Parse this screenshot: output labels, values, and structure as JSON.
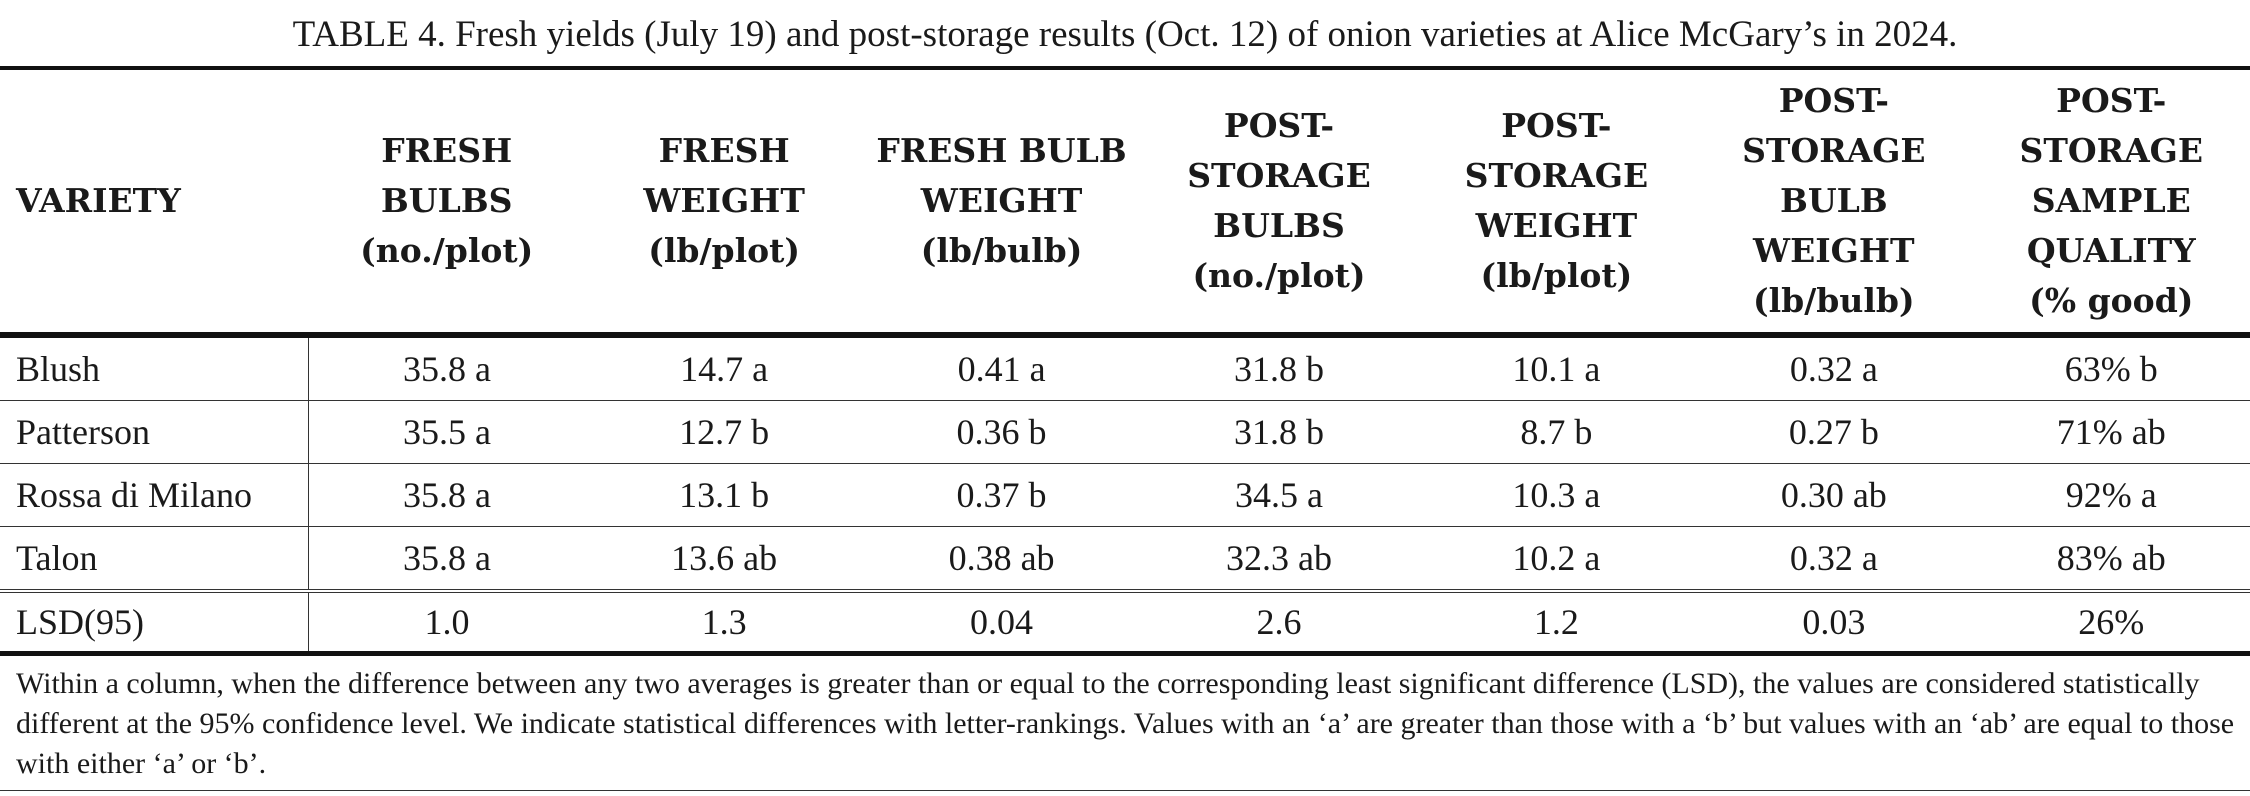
{
  "title": "TABLE 4. Fresh yields (July 19) and post-storage results (Oct. 12) of onion varieties at Alice McGary’s in 2024.",
  "table": {
    "header": [
      [
        "VARIETY"
      ],
      [
        "FRESH",
        "BULBS",
        "(no./plot)"
      ],
      [
        "FRESH",
        "WEIGHT",
        "(lb/plot)"
      ],
      [
        "FRESH BULB",
        "WEIGHT",
        "(lb/bulb)"
      ],
      [
        "POST-",
        "STORAGE",
        "BULBS",
        "(no./plot)"
      ],
      [
        "POST-",
        "STORAGE",
        "WEIGHT",
        "(lb/plot)"
      ],
      [
        "POST-",
        "STORAGE",
        "BULB",
        "WEIGHT",
        "(lb/bulb)"
      ],
      [
        "POST-",
        "STORAGE",
        "SAMPLE",
        "QUALITY",
        "(% good)"
      ]
    ],
    "rows": [
      [
        "Blush",
        "35.8 a",
        "14.7 a",
        "0.41 a",
        "31.8 b",
        "10.1 a",
        "0.32 a",
        "63% b"
      ],
      [
        "Patterson",
        "35.5 a",
        "12.7 b",
        "0.36 b",
        "31.8 b",
        "8.7 b",
        "0.27 b",
        "71% ab"
      ],
      [
        "Rossa di Milano",
        "35.8 a",
        "13.1 b",
        "0.37 b",
        "34.5 a",
        "10.3 a",
        "0.30 ab",
        "92% a"
      ],
      [
        "Talon",
        "35.8 a",
        "13.6 ab",
        "0.38 ab",
        "32.3 ab",
        "10.2 a",
        "0.32 a",
        "83% ab"
      ]
    ],
    "lsd_row": [
      "LSD(95)",
      "1.0",
      "1.3",
      "0.04",
      "2.6",
      "1.2",
      "0.03",
      "26%"
    ]
  },
  "footnote": "Within a column, when the difference between any two averages is greater than or equal to the corresponding least significant difference (LSD), the values are considered statistically different at the 95% confidence level. We indicate statistical differences with letter-rankings. Values with an ‘a’ are greater than those with a ‘b’ but values with an ‘ab’ are equal to those with either ‘a’ or ‘b’."
}
